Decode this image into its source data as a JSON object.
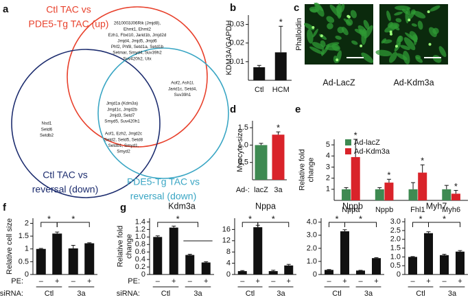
{
  "venn": {
    "panel": "a",
    "sets": [
      {
        "label": [
          "Ctl TAC vs",
          "PDE5-Tg TAC (up)"
        ],
        "color": "#e8412c"
      },
      {
        "label": [
          "Ctl TAC vs",
          "reversal (down)"
        ],
        "color": "#1c2c6e"
      },
      {
        "label": [
          "PDE5-Tg TAC vs",
          "reversal (down)"
        ],
        "color": "#3aa6c4"
      }
    ],
    "regions": [
      [
        "2610003J06Rik (Jmjd8),",
        "Ehmt1, Ehmt2",
        "Ezh1, Fbxl10, Jarid1b, Jmjd2d",
        "Jmjd4, Jmjd5, Jmjd6",
        "Phf2, Phf8, Setd1a, Setd1b",
        "Setmar, Smyd4, Suv39h2",
        "Suv420h2, Utx"
      ],
      [
        "Aof2, Ash1l,",
        "Jarid1c, Setd4,",
        "Suv39h1"
      ],
      [
        "Jmjd1a (Kdm3a)",
        "Jmjd1c, Jmjd2b",
        "Jmjd3, Setd7",
        "Smyd5, Suv420h1"
      ],
      [
        "Nsd1",
        "Setd6",
        "Setdb2"
      ],
      [
        "Aof1, Ezh2, Jmjd2c",
        "Setd2, Setd5, Setd8",
        "Setdb1, Smyd1,",
        "Smyd2"
      ]
    ]
  },
  "images": {
    "panel": "c",
    "ylabel": "Phalloidin",
    "labels": [
      "Ad-LacZ",
      "Ad-Kdm3a"
    ]
  },
  "chart_data": [
    {
      "type": "bar",
      "panel": "b",
      "ylabel": [
        "KDM3A/GAPDH"
      ],
      "categories": [
        "Ctl",
        "HCM"
      ],
      "values": [
        0.007,
        0.015
      ],
      "errors": [
        0.001,
        0.014
      ],
      "color": "#111111",
      "ylim": [
        0,
        0.035
      ],
      "yticks": [
        0.01,
        0.02,
        0.03
      ],
      "annotations": [
        "*"
      ]
    },
    {
      "type": "bar",
      "panel": "d",
      "ylabel": [
        "Myocyte size"
      ],
      "category_prefix": "Ad-:",
      "categories": [
        "lacZ",
        "3a"
      ],
      "series": [
        {
          "color": "#3e8a52",
          "values": [
            1.0,
            1.3
          ],
          "errors": [
            0.05,
            0.08
          ]
        }
      ],
      "bar_colors": [
        "#3e8a52",
        "#d9232a"
      ],
      "ylim": [
        0,
        1.7
      ],
      "yticks": [
        0.5,
        {
          "value": 1,
          "label": "1.0"
        },
        1.5
      ],
      "annotations": [
        "*"
      ]
    },
    {
      "type": "bar",
      "panel": "e",
      "ylabel": [
        "Relative fold",
        "change"
      ],
      "categories": [
        "Nppa",
        "Nppb",
        "Fhl1",
        "Myh6"
      ],
      "series": [
        {
          "name": "Ad-lacZ",
          "color": "#3e8a52",
          "values": [
            1,
            1,
            1,
            1
          ],
          "errors": [
            0.15,
            0.15,
            0.6,
            0.35
          ]
        },
        {
          "name": "Ad-Kdm3a",
          "color": "#d9232a",
          "values": [
            3.9,
            1.6,
            2.5,
            0.6
          ],
          "errors": [
            1.6,
            0.3,
            0.7,
            0.3
          ]
        }
      ],
      "ylim": [
        0,
        5.5
      ],
      "yticks": [
        1,
        2,
        3,
        4,
        5
      ],
      "annotations": [
        "*",
        "*",
        "*",
        "*"
      ]
    },
    {
      "type": "bar",
      "panel": "f",
      "ylabel": [
        "Relative cell size"
      ],
      "category_label": "PE:",
      "group_label": "siRNA:",
      "categories": [
        "–",
        "+",
        "–",
        "+"
      ],
      "groups": [
        "Ctl",
        "3a"
      ],
      "values": [
        1.0,
        1.6,
        1.02,
        1.22
      ],
      "errors": [
        0.02,
        0.06,
        0.12,
        0.02
      ],
      "color": "#111111",
      "ylim": [
        0,
        2.2
      ],
      "yticks": [
        0,
        0.5,
        1,
        1.5,
        2
      ],
      "annotations": [
        "*",
        "*"
      ]
    },
    {
      "type": "bar",
      "panel": "g",
      "title": "Kdm3a",
      "ylabel": [
        "Relative fold",
        "change"
      ],
      "category_label": "PE:",
      "group_label": "siRNA:",
      "categories": [
        "–",
        "+",
        "–",
        "+"
      ],
      "groups": [
        "Ctl",
        "3a"
      ],
      "values": [
        1.0,
        1.25,
        0.52,
        0.32
      ],
      "errors": [
        0.03,
        0.04,
        0.02,
        0.02
      ],
      "color": "#111111",
      "ylim": [
        0,
        1.5
      ],
      "yticks": [
        0,
        0.2,
        0.4,
        0.6,
        0.8,
        {
          "value": 1,
          "label": "1.0"
        },
        1.2,
        1.4
      ],
      "annotations": [
        "*"
      ]
    },
    {
      "type": "bar",
      "title": "Nppa",
      "categories": [
        "–",
        "+",
        "–",
        "+"
      ],
      "groups": [
        "Ctl",
        "3a"
      ],
      "values": [
        1.2,
        16.8,
        1.2,
        3.2
      ],
      "errors": [
        0.2,
        0.7,
        0.3,
        0.4
      ],
      "color": "#111111",
      "ylim": [
        0,
        20
      ],
      "yticks": [
        0,
        4,
        8,
        12,
        16
      ],
      "annotations": [
        "*",
        "*"
      ]
    },
    {
      "type": "bar",
      "title": "Nppb",
      "categories": [
        "–",
        "+",
        "–",
        "+"
      ],
      "groups": [
        "Ctl",
        "3a"
      ],
      "values": [
        0.35,
        3.3,
        0.3,
        1.25
      ],
      "errors": [
        0.03,
        0.12,
        0.02,
        0.04
      ],
      "color": "#111111",
      "ylim": [
        0,
        4.3
      ],
      "yticks": [
        0,
        {
          "value": 1,
          "label": "1.0"
        },
        {
          "value": 2,
          "label": "2.0"
        },
        {
          "value": 3,
          "label": "3.0"
        },
        {
          "value": 4,
          "label": "4.0"
        }
      ],
      "annotations": [
        "*",
        "*"
      ]
    },
    {
      "type": "bar",
      "title": "Myh7",
      "categories": [
        "–",
        "+",
        "–",
        "+"
      ],
      "groups": [
        "Ctl",
        "3a"
      ],
      "values": [
        1.0,
        2.35,
        1.1,
        1.3
      ],
      "errors": [
        0.02,
        0.08,
        0.05,
        0.06
      ],
      "color": "#111111",
      "ylim": [
        0,
        3.2
      ],
      "yticks": [
        0,
        0.5,
        {
          "value": 1,
          "label": "1.0"
        },
        1.5,
        {
          "value": 2,
          "label": "2.0"
        },
        2.5,
        {
          "value": 3,
          "label": "3.0"
        }
      ],
      "annotations": [
        "*",
        "*"
      ]
    }
  ]
}
